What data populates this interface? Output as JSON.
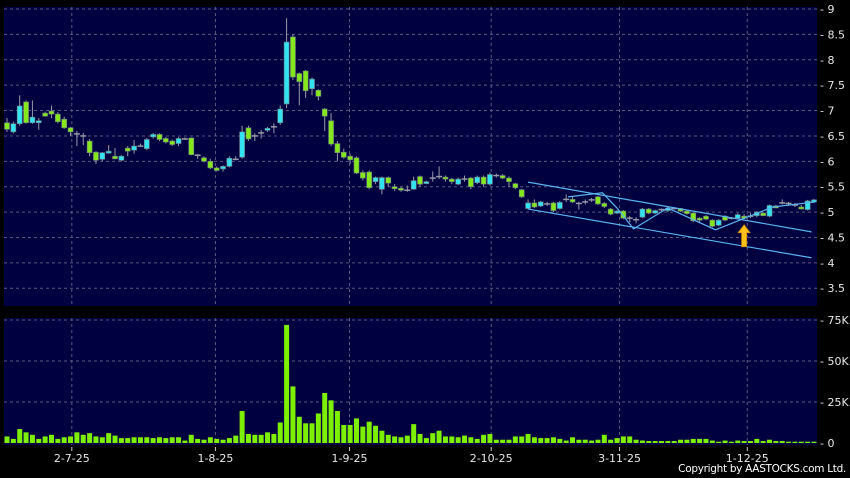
{
  "chart_data": [
    {
      "type": "candlestick",
      "panel": "price",
      "ylim": [
        3.15,
        9.04
      ],
      "y_ticks": [
        "3.5",
        "4",
        "4.5",
        "5",
        "5.5",
        "6",
        "6.5",
        "7",
        "7.5",
        "8",
        "8.5",
        "9"
      ],
      "grid": true,
      "colors": {
        "up": "#33e3f2",
        "down": "#84e81c",
        "wick": "#9a9aa8",
        "background": "#000040",
        "grid": "#5a5a80",
        "trendline": "#5ab4f0",
        "arrow": "#ffc21a"
      },
      "ohlc": [
        [
          6.76,
          6.85,
          6.58,
          6.63
        ],
        [
          6.58,
          6.78,
          6.55,
          6.74
        ],
        [
          6.74,
          7.3,
          6.7,
          7.09
        ],
        [
          7.17,
          7.2,
          6.74,
          6.76
        ],
        [
          6.76,
          7.2,
          6.74,
          6.87
        ],
        [
          6.76,
          6.85,
          6.62,
          6.8
        ],
        [
          6.95,
          6.98,
          6.88,
          6.89
        ],
        [
          6.99,
          7.1,
          6.85,
          6.93
        ],
        [
          6.93,
          6.97,
          6.75,
          6.78
        ],
        [
          6.83,
          6.88,
          6.64,
          6.66
        ],
        [
          6.66,
          6.68,
          6.5,
          6.58
        ],
        [
          6.54,
          6.6,
          6.3,
          6.54
        ],
        [
          6.5,
          6.56,
          6.32,
          6.5
        ],
        [
          6.4,
          6.44,
          6.1,
          6.17
        ],
        [
          6.18,
          6.2,
          5.95,
          6.02
        ],
        [
          6.04,
          6.18,
          6.0,
          6.17
        ],
        [
          6.18,
          6.32,
          6.15,
          6.2
        ],
        [
          6.1,
          6.26,
          6.04,
          6.05
        ],
        [
          6.02,
          6.12,
          6.0,
          6.1
        ],
        [
          6.26,
          6.3,
          6.1,
          6.2
        ],
        [
          6.22,
          6.42,
          6.15,
          6.3
        ],
        [
          6.3,
          6.35,
          6.28,
          6.3
        ],
        [
          6.25,
          6.46,
          6.22,
          6.43
        ],
        [
          6.48,
          6.56,
          6.45,
          6.53
        ],
        [
          6.53,
          6.55,
          6.4,
          6.43
        ],
        [
          6.45,
          6.48,
          6.35,
          6.38
        ],
        [
          6.4,
          6.43,
          6.3,
          6.33
        ],
        [
          6.35,
          6.48,
          6.3,
          6.45
        ],
        [
          6.44,
          6.47,
          6.42,
          6.44
        ],
        [
          6.46,
          6.47,
          6.12,
          6.13
        ],
        [
          6.12,
          6.14,
          6.05,
          6.12
        ],
        [
          6.07,
          6.1,
          5.98,
          6.0
        ],
        [
          6.0,
          6.05,
          5.85,
          5.87
        ],
        [
          5.87,
          5.9,
          5.8,
          5.82
        ],
        [
          5.85,
          5.92,
          5.8,
          5.9
        ],
        [
          5.9,
          6.1,
          5.88,
          6.06
        ],
        [
          6.04,
          6.1,
          6.02,
          6.04
        ],
        [
          6.08,
          6.7,
          6.05,
          6.58
        ],
        [
          6.66,
          6.7,
          6.4,
          6.44
        ],
        [
          6.5,
          6.55,
          6.4,
          6.5
        ],
        [
          6.56,
          6.62,
          6.45,
          6.56
        ],
        [
          6.61,
          6.68,
          6.58,
          6.65
        ],
        [
          6.68,
          6.75,
          6.55,
          6.68
        ],
        [
          6.76,
          7.1,
          6.72,
          7.03
        ],
        [
          7.13,
          8.82,
          7.05,
          8.35
        ],
        [
          8.45,
          8.5,
          7.6,
          7.66
        ],
        [
          7.73,
          7.75,
          7.1,
          7.57
        ],
        [
          7.78,
          7.8,
          7.25,
          7.39
        ],
        [
          7.43,
          7.65,
          7.3,
          7.62
        ],
        [
          7.4,
          7.42,
          7.2,
          7.28
        ],
        [
          7.03,
          7.05,
          6.6,
          6.89
        ],
        [
          6.8,
          6.95,
          6.3,
          6.34
        ],
        [
          6.35,
          6.4,
          6.0,
          6.17
        ],
        [
          6.18,
          6.25,
          6.05,
          6.08
        ],
        [
          6.1,
          6.15,
          5.95,
          6.03
        ],
        [
          6.07,
          6.1,
          5.75,
          5.77
        ],
        [
          5.78,
          5.82,
          5.62,
          5.67
        ],
        [
          5.79,
          5.82,
          5.45,
          5.48
        ],
        [
          5.6,
          5.7,
          5.55,
          5.68
        ],
        [
          5.45,
          5.7,
          5.35,
          5.68
        ],
        [
          5.68,
          5.7,
          5.5,
          5.57
        ],
        [
          5.5,
          5.55,
          5.42,
          5.46
        ],
        [
          5.47,
          5.5,
          5.4,
          5.43
        ],
        [
          5.43,
          5.52,
          5.4,
          5.43
        ],
        [
          5.45,
          5.7,
          5.44,
          5.62
        ],
        [
          5.7,
          5.72,
          5.5,
          5.55
        ],
        [
          5.57,
          5.62,
          5.55,
          5.6
        ],
        [
          5.67,
          5.8,
          5.6,
          5.67
        ],
        [
          5.7,
          5.9,
          5.65,
          5.7
        ],
        [
          5.69,
          5.72,
          5.6,
          5.65
        ],
        [
          5.65,
          5.67,
          5.55,
          5.6
        ],
        [
          5.55,
          5.68,
          5.53,
          5.65
        ],
        [
          5.65,
          5.72,
          5.6,
          5.65
        ],
        [
          5.67,
          5.69,
          5.45,
          5.5
        ],
        [
          5.58,
          5.72,
          5.55,
          5.69
        ],
        [
          5.69,
          5.72,
          5.5,
          5.55
        ],
        [
          5.55,
          5.78,
          5.52,
          5.74
        ],
        [
          5.72,
          5.76,
          5.68,
          5.72
        ],
        [
          5.72,
          5.75,
          5.65,
          5.67
        ],
        [
          5.67,
          5.7,
          5.5,
          5.6
        ],
        [
          5.56,
          5.58,
          5.45,
          5.48
        ],
        [
          5.44,
          5.46,
          5.28,
          5.3
        ],
        [
          5.07,
          5.25,
          5.05,
          5.18
        ],
        [
          5.18,
          5.25,
          5.08,
          5.1
        ],
        [
          5.12,
          5.22,
          5.1,
          5.2
        ],
        [
          5.16,
          5.2,
          5.12,
          5.16
        ],
        [
          5.18,
          5.2,
          5.0,
          5.03
        ],
        [
          5.07,
          5.22,
          5.05,
          5.19
        ],
        [
          5.25,
          5.35,
          5.2,
          5.25
        ],
        [
          5.25,
          5.3,
          5.18,
          5.2
        ],
        [
          5.17,
          5.2,
          5.05,
          5.17
        ],
        [
          5.2,
          5.25,
          5.15,
          5.2
        ],
        [
          5.24,
          5.28,
          5.2,
          5.24
        ],
        [
          5.3,
          5.32,
          5.14,
          5.16
        ],
        [
          5.17,
          5.2,
          5.08,
          5.11
        ],
        [
          5.06,
          5.08,
          4.94,
          4.96
        ],
        [
          4.99,
          5.04,
          4.96,
          5.02
        ],
        [
          5.02,
          5.04,
          4.86,
          4.88
        ],
        [
          4.88,
          4.92,
          4.8,
          4.88
        ],
        [
          4.85,
          4.9,
          4.78,
          4.85
        ],
        [
          4.9,
          5.08,
          4.88,
          5.06
        ],
        [
          5.06,
          5.08,
          4.96,
          4.98
        ],
        [
          4.98,
          5.05,
          4.96,
          5.03
        ],
        [
          5.05,
          5.07,
          5.02,
          5.05
        ],
        [
          5.03,
          5.1,
          5.0,
          5.08
        ],
        [
          5.07,
          5.1,
          5.05,
          5.07
        ],
        [
          5.07,
          5.08,
          5.0,
          5.02
        ],
        [
          5.02,
          5.04,
          4.95,
          4.97
        ],
        [
          4.98,
          5.0,
          4.8,
          4.83
        ],
        [
          4.88,
          4.9,
          4.78,
          4.85
        ],
        [
          4.92,
          4.94,
          4.84,
          4.86
        ],
        [
          4.84,
          4.86,
          4.7,
          4.72
        ],
        [
          4.74,
          4.86,
          4.72,
          4.84
        ],
        [
          4.92,
          4.94,
          4.82,
          4.84
        ],
        [
          4.88,
          4.9,
          4.85,
          4.88
        ],
        [
          4.88,
          4.98,
          4.86,
          4.95
        ],
        [
          4.92,
          4.96,
          4.87,
          4.88
        ],
        [
          4.92,
          4.98,
          4.88,
          4.92
        ],
        [
          4.93,
          5.02,
          4.9,
          5.0
        ],
        [
          4.98,
          5.0,
          4.92,
          4.93
        ],
        [
          4.92,
          5.15,
          4.9,
          5.13
        ],
        [
          5.12,
          5.14,
          5.08,
          5.09
        ],
        [
          5.18,
          5.25,
          5.15,
          5.18
        ],
        [
          5.17,
          5.2,
          5.12,
          5.17
        ],
        [
          5.14,
          5.18,
          5.1,
          5.14
        ],
        [
          5.1,
          5.14,
          5.05,
          5.08
        ],
        [
          5.05,
          5.24,
          5.03,
          5.22
        ],
        [
          5.2,
          5.26,
          5.18,
          5.24
        ]
      ],
      "trendlines": [
        {
          "kind": "channel-upper",
          "points": [
            [
              82,
              5.59
            ],
            [
              126.6,
              4.61
            ]
          ]
        },
        {
          "kind": "channel-lower",
          "points": [
            [
              82,
              5.06
            ],
            [
              126.6,
              4.1
            ]
          ]
        },
        {
          "kind": "zigzag",
          "points": [
            [
              88.3,
              5.3
            ],
            [
              93.7,
              5.38
            ],
            [
              96,
              5.08
            ],
            [
              98.6,
              4.67
            ],
            [
              104,
              5.08
            ],
            [
              111.5,
              4.65
            ],
            [
              120.5,
              5.1
            ],
            [
              127.2,
              5.2
            ]
          ]
        }
      ],
      "annotation_arrow": {
        "direction": "up",
        "bar": 116,
        "price": 4.75
      }
    },
    {
      "type": "bar",
      "panel": "volume",
      "ylim": [
        0,
        75
      ],
      "y_ticks": [
        "0",
        "25K",
        "50K",
        "75K"
      ],
      "y_tick_values": [
        0,
        25,
        50,
        75
      ],
      "grid": true,
      "color": "#7cf000",
      "values_k": [
        4,
        2.5,
        8.5,
        6.5,
        5,
        2.5,
        4,
        5,
        2.5,
        3.5,
        4,
        6.5,
        5,
        6,
        4,
        3.5,
        6,
        4.5,
        3,
        3,
        3.5,
        3.5,
        3.5,
        3,
        3.5,
        3,
        3.5,
        3.5,
        1.5,
        5,
        2.5,
        2,
        3.5,
        2.5,
        2,
        3,
        4.5,
        19.5,
        5.5,
        5,
        5,
        6.5,
        5.5,
        12.5,
        72,
        34.5,
        16,
        12,
        12,
        18,
        30.5,
        26,
        19.5,
        11,
        11,
        15,
        10,
        13,
        10.5,
        7.5,
        5,
        4,
        3.5,
        4.5,
        11.5,
        5.5,
        3,
        6,
        7.5,
        4,
        4,
        3.5,
        4.5,
        3.5,
        2.5,
        5,
        5.5,
        2,
        2,
        2,
        4,
        4,
        5.5,
        3.5,
        3,
        3,
        3.5,
        2.5,
        1.5,
        3.5,
        2,
        2,
        1.5,
        2,
        5,
        2,
        3,
        4,
        4,
        2,
        1.5,
        1.2,
        1.2,
        1.2,
        1.2,
        1.2,
        2,
        2,
        2.5,
        2.5,
        2.5,
        1.5,
        0.8,
        1.5,
        0.8,
        1.5,
        1.2,
        1.2,
        2.5,
        1.2,
        2,
        1.2,
        1.2,
        0.8,
        0.8,
        0.8,
        0.8,
        0.8
      ]
    }
  ],
  "x_axis": {
    "ticks": [
      {
        "label": "2-7-25",
        "bar": 10.2
      },
      {
        "label": "1-8-25",
        "bar": 32.8
      },
      {
        "label": "1-9-25",
        "bar": 53.9
      },
      {
        "label": "2-10-25",
        "bar": 76.2
      },
      {
        "label": "3-11-25",
        "bar": 96.4
      },
      {
        "label": "1-12-25",
        "bar": 116.5
      }
    ]
  },
  "footer": {
    "copyright": "Copyright by AASTOCKS.com Ltd."
  }
}
